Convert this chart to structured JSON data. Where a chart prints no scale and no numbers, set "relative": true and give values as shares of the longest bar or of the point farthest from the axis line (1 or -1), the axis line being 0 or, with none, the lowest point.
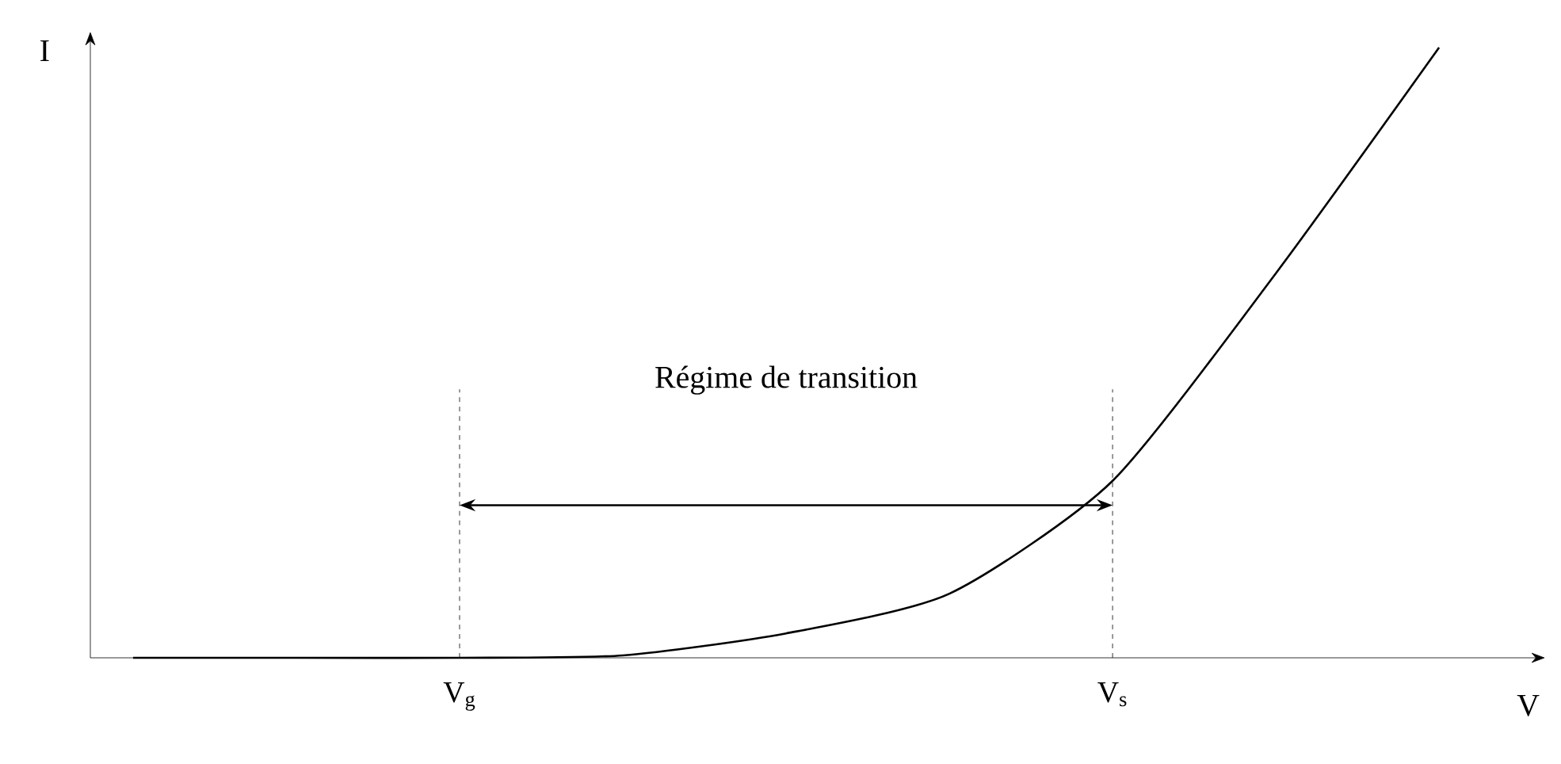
{
  "chart_data": {
    "type": "line",
    "relative": true,
    "xlabel": "V",
    "ylabel": "I",
    "categories": [
      null,
      null,
      "V$_{g}$",
      null,
      null,
      null,
      "V$_{s}$",
      null,
      null
    ],
    "series": [
      {
        "color": "#000000",
        "values": [
          0,
          0,
          0,
          0.004,
          0.04,
          0.105,
          0.29,
          0.63,
          1.0
        ]
      }
    ],
    "ref_lines": [
      {
        "axis": "x",
        "value": "V$_{g}$",
        "line_style": "dashed"
      },
      {
        "axis": "x",
        "value": "V$_{s}$",
        "line_style": "dashed"
      }
    ],
    "annotations": [
      "Régime de transition"
    ],
    "marker": "none",
    "line_style": "solid"
  }
}
